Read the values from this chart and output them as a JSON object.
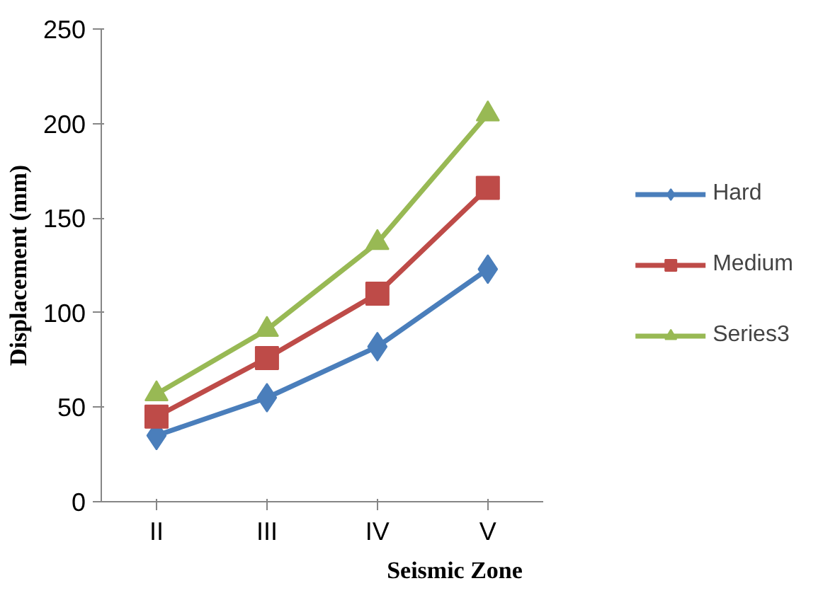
{
  "chart_data": {
    "type": "line",
    "xlabel": "Seismic Zone",
    "ylabel": "Displacement (mm)",
    "categories": [
      "II",
      "III",
      "IV",
      "V"
    ],
    "series": [
      {
        "name": "Hard",
        "color": "#4a7ebb",
        "marker": "diamond",
        "values": [
          35,
          55,
          82,
          123
        ]
      },
      {
        "name": "Medium",
        "color": "#be4b48",
        "marker": "square",
        "values": [
          45,
          76,
          110,
          166
        ]
      },
      {
        "name": "Series3",
        "color": "#98b954",
        "marker": "triangle",
        "values": [
          57,
          91,
          137,
          205
        ]
      }
    ],
    "ylim": [
      0,
      250
    ],
    "yticks": [
      0,
      50,
      100,
      150,
      200,
      250
    ],
    "grid": false,
    "legend": "right",
    "line_style": "solid"
  }
}
